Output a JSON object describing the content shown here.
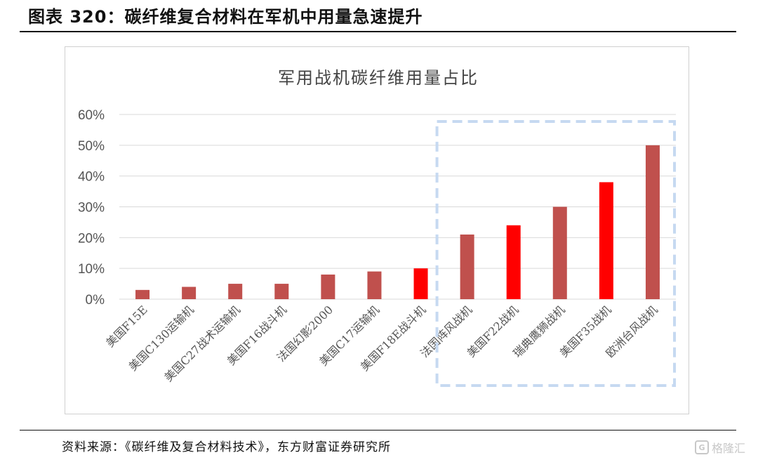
{
  "figure": {
    "title": "图表 320：碳纤维复合材料在军机中用量急速提升",
    "source": "资料来源：《碳纤维及复合材料技术》，东方财富证券研究所",
    "watermark": "格隆汇"
  },
  "chart_data": {
    "type": "bar",
    "title": "军用战机碳纤维用量占比",
    "xlabel": "",
    "ylabel": "",
    "ylim": [
      0,
      60
    ],
    "y_unit": "%",
    "yticks": [
      "0%",
      "10%",
      "20%",
      "30%",
      "40%",
      "50%",
      "60%"
    ],
    "grid": true,
    "categories": [
      "美国F15E",
      "美国C130运输机",
      "美国C27战术运输机",
      "美国F16战斗机",
      "法国幻影2000",
      "美国C17运输机",
      "美国F18E战斗机",
      "法国阵风战机",
      "美国F22战机",
      "瑞典鹰狮战机",
      "美国F35战机",
      "欧洲台风战机"
    ],
    "values": [
      3,
      4,
      5,
      5,
      8,
      9,
      10,
      21,
      24,
      30,
      38,
      50
    ],
    "highlighted": [
      false,
      false,
      false,
      false,
      false,
      false,
      true,
      false,
      true,
      false,
      true,
      false
    ],
    "colors": {
      "normal": "#c0504d",
      "highlight": "#ff0000",
      "grid": "#d9d9d9",
      "highlight_box": "#c6d9f1"
    }
  }
}
